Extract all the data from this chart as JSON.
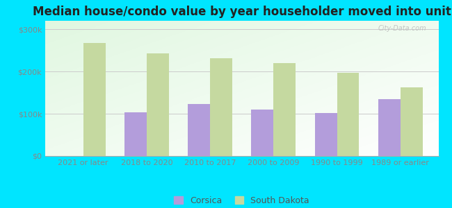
{
  "title": "Median house/condo value by year householder moved into unit",
  "categories": [
    "2021 or later",
    "2018 to 2020",
    "2010 to 2017",
    "2000 to 2009",
    "1990 to 1999",
    "1989 or earlier"
  ],
  "corsica_values": [
    null,
    103000,
    123000,
    110000,
    102000,
    135000
  ],
  "sd_values": [
    268000,
    243000,
    232000,
    220000,
    197000,
    163000
  ],
  "corsica_color": "#b39ddb",
  "sd_color": "#c5d9a0",
  "bg_outer": "#00e5ff",
  "ylabel_color": "#888888",
  "gridline_color": "#cccccc",
  "yticks": [
    0,
    100000,
    200000,
    300000
  ],
  "ytick_labels": [
    "$0",
    "$100k",
    "$200k",
    "$300k"
  ],
  "ylim": [
    0,
    320000
  ],
  "bar_width": 0.35,
  "title_fontsize": 12,
  "tick_fontsize": 8,
  "legend_fontsize": 9,
  "watermark_text": "City-Data.com"
}
